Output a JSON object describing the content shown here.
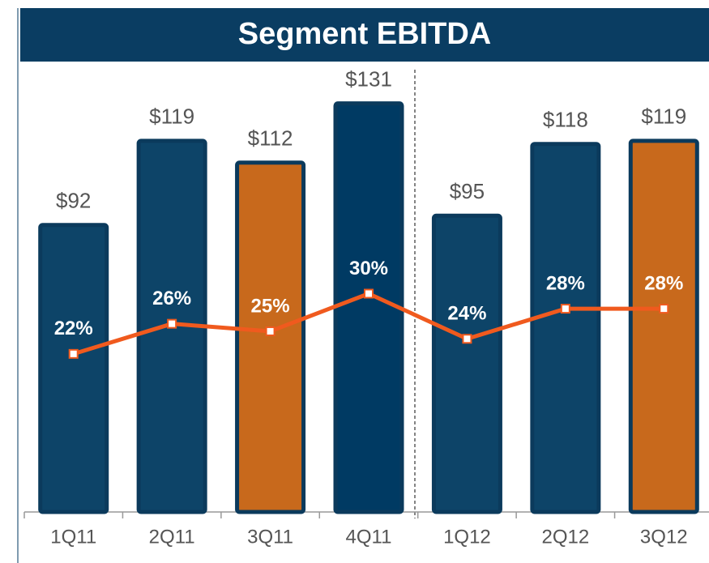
{
  "chart_data": {
    "type": "bar_line",
    "title": "Segment EBITDA",
    "categories": [
      "1Q11",
      "2Q11",
      "3Q11",
      "4Q11",
      "1Q12",
      "2Q12",
      "3Q12"
    ],
    "values": [
      92,
      119,
      112,
      131,
      95,
      118,
      119
    ],
    "value_labels": [
      "$92",
      "$119",
      "$112",
      "$131",
      "$95",
      "$118",
      "$119"
    ],
    "colors": [
      "#0d4468",
      "#0d4468",
      "#c8691c",
      "#003a63",
      "#0d4468",
      "#0d4468",
      "#c8691c"
    ],
    "ylim": [
      0,
      140
    ],
    "line": {
      "values": [
        22,
        26,
        25,
        30,
        24,
        28,
        28
      ],
      "value_labels": [
        "22%",
        "26%",
        "25%",
        "30%",
        "24%",
        "28%",
        "28%"
      ],
      "color": "#f05a1e",
      "axis": "y2"
    },
    "y2lim": [
      1,
      59
    ]
  }
}
